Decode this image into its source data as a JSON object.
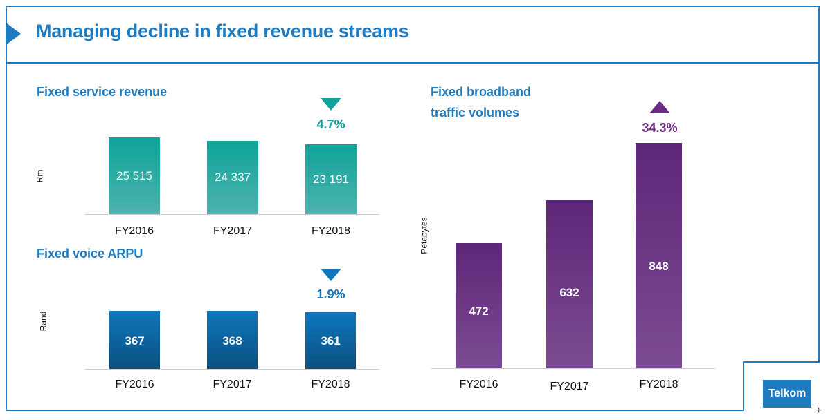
{
  "slide": {
    "title": "Managing decline in fixed revenue streams",
    "logo_text": "Telkom"
  },
  "colors": {
    "accent": "#1f7bbf",
    "teal": "#0fa39a",
    "blue": "#0f77bc",
    "purple": "#6a2c82"
  },
  "chart_data": [
    {
      "type": "bar",
      "title": "Fixed service revenue",
      "ylabel": "Rm",
      "categories": [
        "FY2016",
        "FY2017",
        "FY2018"
      ],
      "values": [
        25515,
        24337,
        23191
      ],
      "value_labels": [
        "25 515",
        "24 337",
        "23 191"
      ],
      "change": {
        "direction": "down",
        "label": "4.7%"
      },
      "color": "#0fa39a"
    },
    {
      "type": "bar",
      "title": "Fixed voice ARPU",
      "ylabel": "Rand",
      "categories": [
        "FY2016",
        "FY2017",
        "FY2018"
      ],
      "values": [
        367,
        368,
        361
      ],
      "value_labels": [
        "367",
        "368",
        "361"
      ],
      "change": {
        "direction": "down",
        "label": "1.9%"
      },
      "color": "#0f77bc"
    },
    {
      "type": "bar",
      "title_lines": [
        "Fixed broadband",
        "traffic volumes"
      ],
      "ylabel": "Petabytes",
      "categories": [
        "FY2016",
        "FY2017",
        "FY2018"
      ],
      "values": [
        472,
        632,
        848
      ],
      "value_labels": [
        "472",
        "632",
        "848"
      ],
      "change": {
        "direction": "up",
        "label": "34.3%"
      },
      "color": "#6a2c82"
    }
  ]
}
